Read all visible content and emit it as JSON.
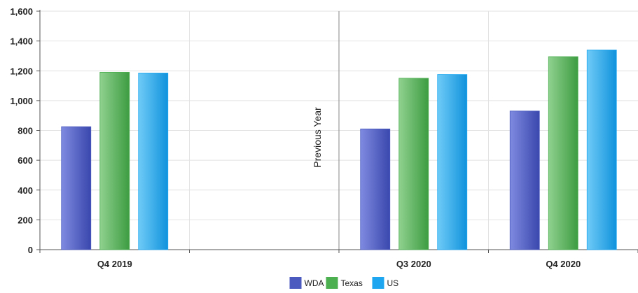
{
  "chart_data": {
    "type": "bar",
    "categories": [
      "Q4 2019",
      "",
      "Q3 2020",
      "Q4 2020"
    ],
    "series": [
      {
        "name": "WDA",
        "color": "#4a5abf",
        "values": [
          825,
          null,
          810,
          930
        ]
      },
      {
        "name": "Texas",
        "color": "#4caf50",
        "values": [
          1190,
          null,
          1150,
          1295
        ]
      },
      {
        "name": "US",
        "color": "#1ea7f0",
        "values": [
          1185,
          null,
          1175,
          1340
        ]
      }
    ],
    "ylim": [
      0,
      1600
    ],
    "yticks": [
      0,
      200,
      400,
      600,
      800,
      1000,
      1200,
      1400,
      1600
    ],
    "ytick_labels": [
      "0",
      "200",
      "400",
      "600",
      "800",
      "1,000",
      "1,200",
      "1,400",
      "1,600"
    ],
    "annotation": "Previous Year",
    "grid": true,
    "legend": "bottom"
  }
}
